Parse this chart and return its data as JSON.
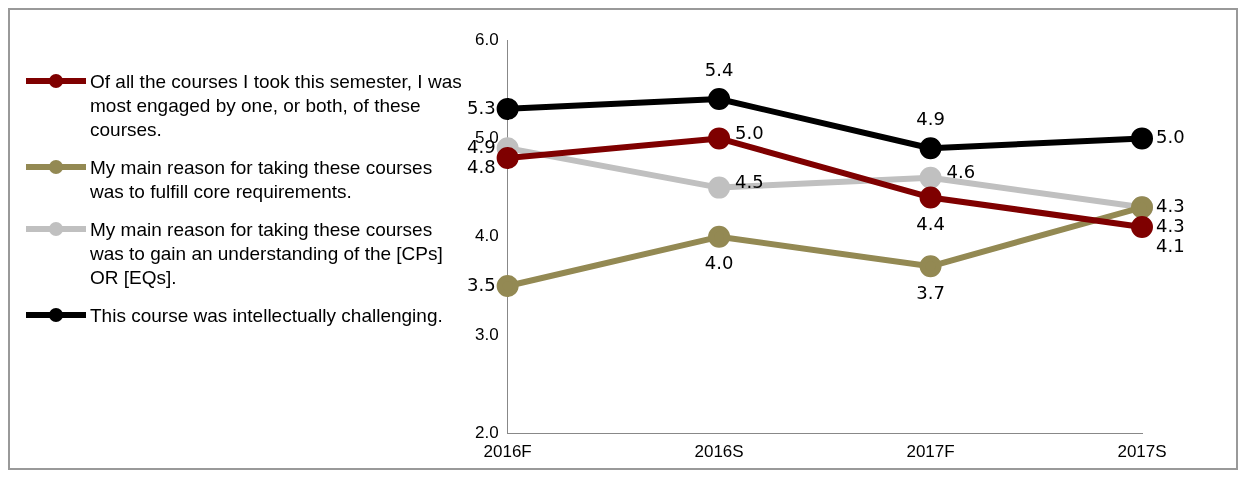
{
  "chart_data": {
    "type": "line",
    "categories": [
      "2016F",
      "2016S",
      "2017F",
      "2017S"
    ],
    "series": [
      {
        "name": "Of all the courses I took this semester, I was most engaged by one, or both, of these courses.",
        "color": "#7f0000",
        "values": [
          4.8,
          5.0,
          4.4,
          4.1
        ],
        "value_labels": [
          "4.8",
          "5.0",
          "4.4",
          "4.1"
        ]
      },
      {
        "name": "My main reason for taking these courses was to fulfill core requirements.",
        "color": "#938953",
        "values": [
          3.5,
          4.0,
          3.7,
          4.3
        ],
        "value_labels": [
          "3.5",
          "4.0",
          "3.7",
          "4.3"
        ]
      },
      {
        "name": "My main reason for taking these courses was to gain an understanding of the [CPs] OR [EQs].",
        "color": "#c0c0c0",
        "values": [
          4.9,
          4.5,
          4.6,
          4.3
        ],
        "value_labels": [
          "4.9",
          "4.5",
          "4.6",
          "4.3"
        ]
      },
      {
        "name": "This course was intellectually challenging.",
        "color": "#000000",
        "values": [
          5.3,
          5.4,
          4.9,
          5.0
        ],
        "value_labels": [
          "5.3",
          "5.4",
          "4.9",
          "5.0"
        ]
      }
    ],
    "ylim": [
      2,
      6
    ],
    "yticks": [
      {
        "value": 2,
        "label": "2.0"
      },
      {
        "value": 3,
        "label": "3.0"
      },
      {
        "value": 4,
        "label": "4.0"
      },
      {
        "value": 5,
        "label": "5.0"
      },
      {
        "value": 6,
        "label": "6.0"
      }
    ],
    "grid": false,
    "legend": "left",
    "marker": "circle",
    "line_style": "solid"
  }
}
